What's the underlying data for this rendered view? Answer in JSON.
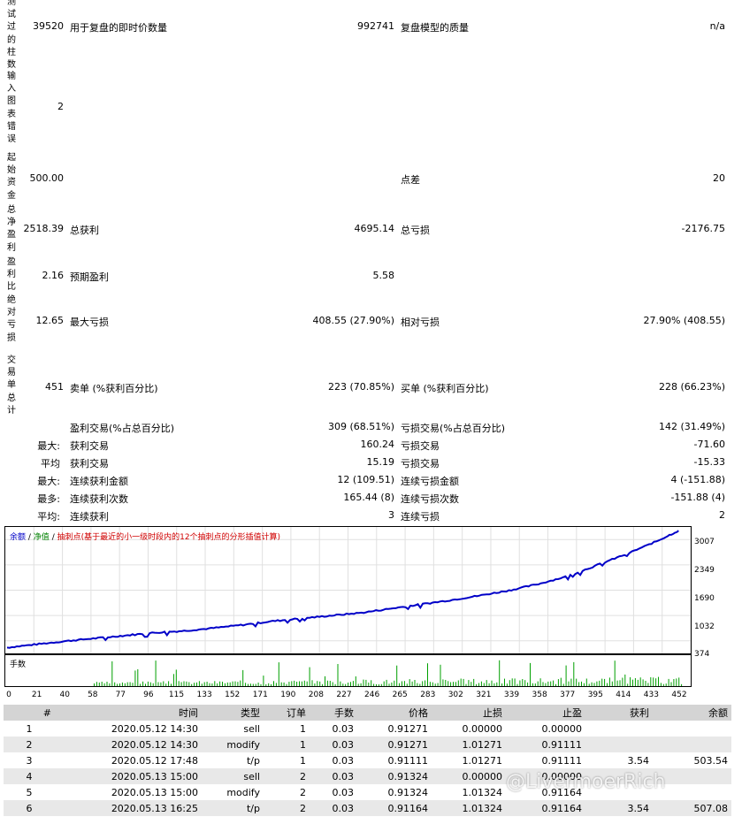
{
  "summary": {
    "bars_tested": {
      "label": "测试过的柱数",
      "value": "39520",
      "ticks_label": "用于复盘的即时价数量",
      "ticks_value": "992741",
      "quality_label": "复盘模型的质量",
      "quality_value": "n/a"
    },
    "chart_errors": {
      "label": "输入图表错误",
      "value": "2"
    },
    "initial_deposit": {
      "label": "起始资金",
      "value": "500.00",
      "spread_label": "点差",
      "spread_value": "20"
    },
    "net_profit": {
      "label": "总净盈利",
      "value": "2518.39",
      "gross_profit_label": "总获利",
      "gross_profit_value": "4695.14",
      "gross_loss_label": "总亏损",
      "gross_loss_value": "-2176.75"
    },
    "profit_factor": {
      "label": "盈利比",
      "value": "2.16",
      "expected_label": "预期盈利",
      "expected_value": "5.58"
    },
    "abs_drawdown": {
      "label": "绝对亏损",
      "value": "12.65",
      "max_dd_label": "最大亏损",
      "max_dd_value": "408.55 (27.90%)",
      "rel_dd_label": "相对亏损",
      "rel_dd_value": "27.90% (408.55)"
    },
    "total_trades": {
      "label": "交易单总计",
      "value": "451",
      "short_label": "卖单 (%获利百分比)",
      "short_value": "223 (70.85%)",
      "long_label": "买单 (%获利百分比)",
      "long_value": "228 (66.23%)"
    }
  },
  "stats_rows": [
    {
      "prefix": "",
      "l_label": "盈利交易(%占总百分比)",
      "l_value": "309 (68.51%)",
      "r_label": "亏损交易(%占总百分比)",
      "r_value": "142 (31.49%)"
    },
    {
      "prefix": "最大:",
      "l_label": "获利交易",
      "l_value": "160.24",
      "r_label": "亏损交易",
      "r_value": "-71.60"
    },
    {
      "prefix": "平均",
      "l_label": "获利交易",
      "l_value": "15.19",
      "r_label": "亏损交易",
      "r_value": "-15.33"
    },
    {
      "prefix": "最大:",
      "l_label": "连续获利金额",
      "l_value": "12 (109.51)",
      "r_label": "连续亏损金额",
      "r_value": "4 (-151.88)"
    },
    {
      "prefix": "最多:",
      "l_label": "连续获利次数",
      "l_value": "165.44 (8)",
      "r_label": "连续亏损次数",
      "r_value": "-151.88 (4)"
    },
    {
      "prefix": "平均:",
      "l_label": "连续获利",
      "l_value": "3",
      "r_label": "连续亏损",
      "r_value": "2"
    }
  ],
  "chart_data": [
    {
      "type": "line",
      "legend": {
        "balance": "余额",
        "equity": "净值",
        "note": "抽刺点(基于最近的小一级时段内的12个抽刺点的分形插值计算)"
      },
      "ylim": [
        374,
        3100
      ],
      "yticks": [
        "3007",
        "2349",
        "1690",
        "1032",
        "374"
      ],
      "colors": {
        "balance": "#0000c8",
        "equity": "#008000",
        "note": "#d00000"
      },
      "series": [
        {
          "name": "余额",
          "x": [
            0,
            20,
            40,
            60,
            80,
            100,
            120,
            140,
            160,
            180,
            200,
            220,
            240,
            260,
            280,
            300,
            320,
            340,
            360,
            380,
            400,
            420,
            440,
            455
          ],
          "values": [
            500,
            570,
            640,
            700,
            760,
            820,
            860,
            920,
            990,
            1070,
            1130,
            1190,
            1250,
            1340,
            1430,
            1520,
            1620,
            1730,
            1870,
            2040,
            2280,
            2520,
            2790,
            3020
          ]
        }
      ]
    },
    {
      "type": "bar",
      "label": "手数",
      "xticks": [
        "0",
        "21",
        "40",
        "58",
        "77",
        "96",
        "115",
        "133",
        "152",
        "171",
        "190",
        "208",
        "227",
        "246",
        "265",
        "283",
        "302",
        "321",
        "339",
        "358",
        "377",
        "395",
        "414",
        "433",
        "452"
      ],
      "color": "#00a000"
    }
  ],
  "deals": {
    "headers": [
      "#",
      "时间",
      "类型",
      "订单",
      "手数",
      "价格",
      "止损",
      "止盈",
      "获利",
      "余额"
    ],
    "rows": [
      [
        "1",
        "2020.05.12 14:30",
        "sell",
        "1",
        "0.03",
        "0.91271",
        "0.00000",
        "0.00000",
        "",
        ""
      ],
      [
        "2",
        "2020.05.12 14:30",
        "modify",
        "1",
        "0.03",
        "0.91271",
        "1.01271",
        "0.91111",
        "",
        ""
      ],
      [
        "3",
        "2020.05.12 17:48",
        "t/p",
        "1",
        "0.03",
        "0.91111",
        "1.01271",
        "0.91111",
        "3.54",
        "503.54"
      ],
      [
        "4",
        "2020.05.13 15:00",
        "sell",
        "2",
        "0.03",
        "0.91324",
        "0.00000",
        "0.00000",
        "",
        ""
      ],
      [
        "5",
        "2020.05.13 15:00",
        "modify",
        "2",
        "0.03",
        "0.91324",
        "1.01324",
        "0.91164",
        "",
        ""
      ],
      [
        "6",
        "2020.05.13 16:25",
        "t/p",
        "2",
        "0.03",
        "0.91164",
        "1.01324",
        "0.91164",
        "3.54",
        "507.08"
      ]
    ]
  },
  "watermark": "@LivermoerRich"
}
